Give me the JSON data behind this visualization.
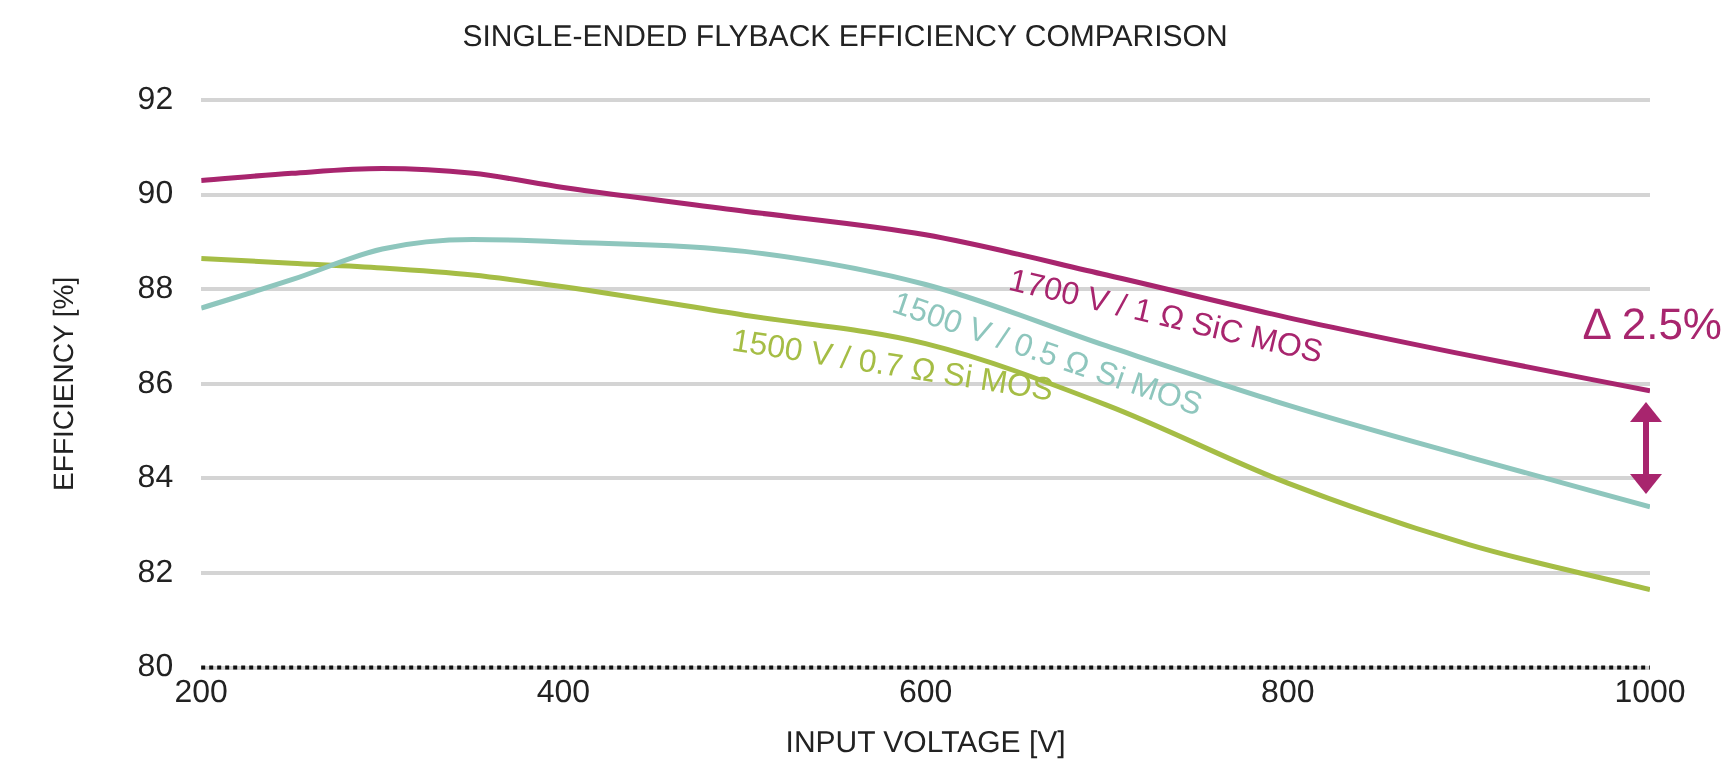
{
  "chart_data": {
    "type": "line",
    "title": "SINGLE-ENDED FLYBACK EFFICIENCY COMPARISON",
    "xlabel": "INPUT VOLTAGE [V]",
    "ylabel": "EFFICIENCY [%]",
    "x": [
      200,
      250,
      300,
      350,
      400,
      500,
      600,
      700,
      800,
      900,
      1000
    ],
    "series": [
      {
        "name": "1700 V / 1 Ω SiC MOS",
        "color": "#a8256e",
        "values": [
          90.3,
          90.45,
          90.55,
          90.45,
          90.15,
          89.65,
          89.15,
          88.3,
          87.4,
          86.6,
          85.85
        ]
      },
      {
        "name": "1500 V / 0.5 Ω Si MOS",
        "color": "#8ec6bd",
        "values": [
          87.6,
          88.2,
          88.85,
          89.05,
          89.0,
          88.8,
          88.1,
          86.8,
          85.55,
          84.45,
          83.4
        ]
      },
      {
        "name": "1500 V / 0.7 Ω Si MOS",
        "color": "#a5bd45",
        "values": [
          88.65,
          88.55,
          88.45,
          88.3,
          88.05,
          87.45,
          86.85,
          85.55,
          83.9,
          82.6,
          81.65
        ]
      }
    ],
    "xlim": [
      200,
      1000
    ],
    "xticks": [
      200,
      400,
      600,
      800,
      1000
    ],
    "ylim": [
      80,
      92
    ],
    "yticks": [
      80,
      82,
      84,
      86,
      88,
      90,
      92
    ],
    "grid": "y",
    "legend": false,
    "marker": "none",
    "line_style": "solid",
    "annotations": [
      "Δ 2.5%"
    ]
  }
}
